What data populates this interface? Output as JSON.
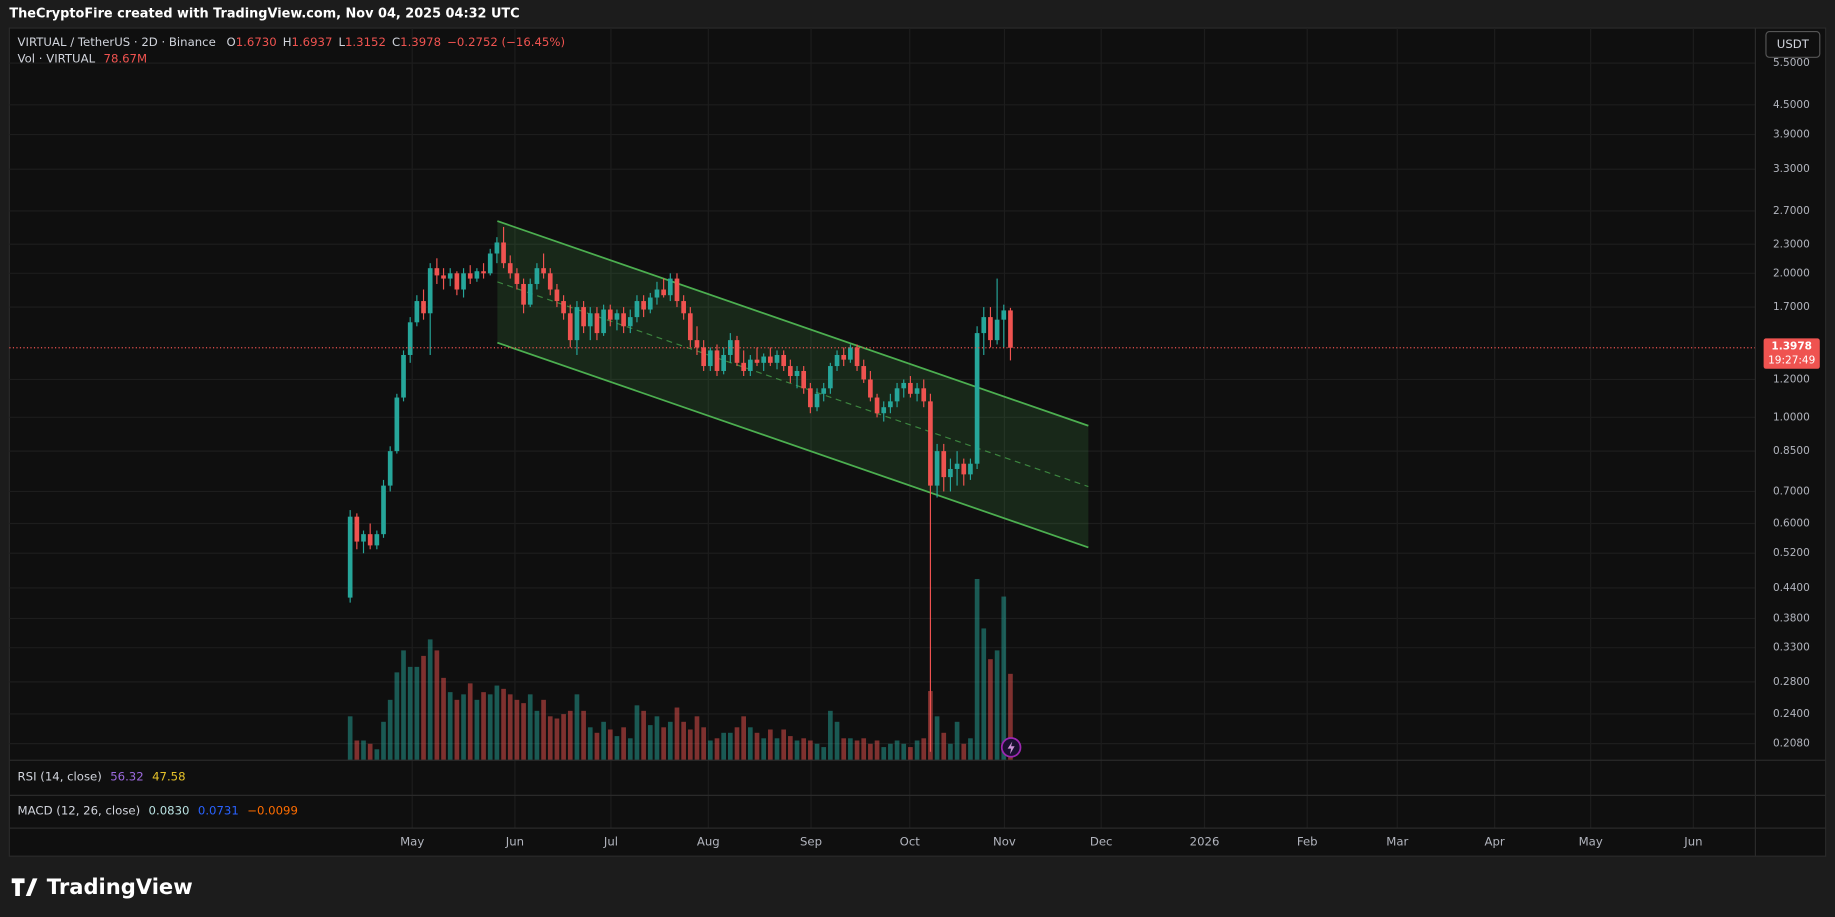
{
  "header": {
    "title": "TheCryptoFire created with TradingView.com, Nov 04, 2025 04:32 UTC"
  },
  "footer": {
    "brand": "TradingView"
  },
  "chart_data": {
    "type": "candlestick",
    "symbol": "VIRTUAL / TetherUS · 2D · Binance",
    "legend": {
      "o_label": "O",
      "o": "1.6730",
      "h_label": "H",
      "h": "1.6937",
      "l_label": "L",
      "l": "1.3152",
      "c_label": "C",
      "c": "1.3978",
      "change": "−0.2752 (−16.45%)"
    },
    "volume_legend": {
      "name": "Vol · VIRTUAL",
      "value": "78.67M"
    },
    "rsi": {
      "name": "RSI (14, close)",
      "values": [
        "56.32",
        "47.58"
      ],
      "colors": [
        "#9c6ade",
        "#e6c229"
      ]
    },
    "macd": {
      "name": "MACD (12, 26, close)",
      "values": [
        "0.0830",
        "0.0731",
        "−0.0099"
      ],
      "colors": [
        "#b8e0e0",
        "#2962ff",
        "#ff6d00"
      ]
    },
    "currency": "USDT",
    "countdown": "19:27:49",
    "up_color": "#26a69a",
    "down_color": "#ef5350",
    "log_scale": true,
    "grid": true,
    "ylim": [
      0.192,
      6.51
    ],
    "yticks": [
      {
        "value": 5.5,
        "label": "5.5000"
      },
      {
        "value": 4.5,
        "label": "4.5000"
      },
      {
        "value": 3.9,
        "label": "3.9000"
      },
      {
        "value": 3.3,
        "label": "3.3000"
      },
      {
        "value": 2.7,
        "label": "2.7000"
      },
      {
        "value": 2.3,
        "label": "2.3000"
      },
      {
        "value": 2.0,
        "label": "2.0000"
      },
      {
        "value": 1.7,
        "label": "1.7000"
      },
      {
        "value": 1.2,
        "label": "1.2000"
      },
      {
        "value": 1.0,
        "label": "1.0000"
      },
      {
        "value": 0.85,
        "label": "0.8500"
      },
      {
        "value": 0.7,
        "label": "0.7000"
      },
      {
        "value": 0.6,
        "label": "0.6000"
      },
      {
        "value": 0.52,
        "label": "0.5200"
      },
      {
        "value": 0.44,
        "label": "0.4400"
      },
      {
        "value": 0.38,
        "label": "0.3800"
      },
      {
        "value": 0.33,
        "label": "0.3300"
      },
      {
        "value": 0.28,
        "label": "0.2800"
      },
      {
        "value": 0.24,
        "label": "0.2400"
      },
      {
        "value": 0.208,
        "label": "0.2080"
      }
    ],
    "xlim": [
      -51.1,
      210.7
    ],
    "xticks": [
      {
        "value": 9.3,
        "label": "May"
      },
      {
        "value": 24.7,
        "label": "Jun"
      },
      {
        "value": 39.1,
        "label": "Jul"
      },
      {
        "value": 53.7,
        "label": "Aug"
      },
      {
        "value": 69.1,
        "label": "Sep"
      },
      {
        "value": 83.9,
        "label": "Oct"
      },
      {
        "value": 98.1,
        "label": "Nov"
      },
      {
        "value": 112.6,
        "label": "Dec"
      },
      {
        "value": 128.1,
        "label": "2026"
      },
      {
        "value": 143.5,
        "label": "Feb"
      },
      {
        "value": 157.0,
        "label": "Mar"
      },
      {
        "value": 171.6,
        "label": "Apr"
      },
      {
        "value": 186.0,
        "label": "May"
      },
      {
        "value": 201.4,
        "label": "Jun"
      }
    ],
    "open": [
      0.42,
      0.62,
      0.55,
      0.57,
      0.54,
      0.57,
      0.72,
      0.85,
      1.1,
      1.35,
      1.58,
      1.75,
      1.65,
      2.05,
      1.98,
      1.95,
      2.0,
      1.85,
      2.0,
      1.95,
      2.02,
      2.0,
      2.2,
      2.32,
      2.1,
      2.0,
      1.9,
      1.72,
      1.9,
      2.05,
      2.0,
      1.85,
      1.75,
      1.65,
      1.45,
      1.7,
      1.55,
      1.65,
      1.5,
      1.68,
      1.6,
      1.65,
      1.55,
      1.62,
      1.75,
      1.68,
      1.78,
      1.85,
      1.8,
      1.95,
      1.75,
      1.65,
      1.45,
      1.4,
      1.28,
      1.38,
      1.25,
      1.35,
      1.45,
      1.3,
      1.25,
      1.32,
      1.3,
      1.34,
      1.3,
      1.35,
      1.28,
      1.22,
      1.25,
      1.15,
      1.05,
      1.12,
      1.15,
      1.28,
      1.35,
      1.32,
      1.4,
      1.28,
      1.2,
      1.1,
      1.02,
      1.05,
      1.08,
      1.15,
      1.18,
      1.12,
      1.15,
      1.08,
      0.72,
      0.85,
      0.75,
      0.78,
      0.8,
      0.76,
      0.8,
      1.5,
      1.62,
      1.45,
      1.6,
      1.673
    ],
    "high": [
      0.64,
      0.63,
      0.58,
      0.6,
      0.58,
      0.74,
      0.87,
      1.12,
      1.38,
      1.62,
      1.8,
      1.85,
      2.1,
      2.15,
      2.05,
      2.05,
      2.02,
      2.05,
      2.08,
      2.05,
      2.1,
      2.25,
      2.38,
      2.5,
      2.18,
      2.05,
      1.95,
      1.95,
      2.1,
      2.2,
      2.05,
      1.9,
      1.8,
      1.72,
      1.75,
      1.75,
      1.7,
      1.7,
      1.72,
      1.72,
      1.68,
      1.7,
      1.68,
      1.8,
      1.8,
      1.82,
      1.92,
      1.95,
      2.0,
      2.0,
      1.8,
      1.7,
      1.55,
      1.45,
      1.4,
      1.42,
      1.4,
      1.5,
      1.48,
      1.38,
      1.35,
      1.4,
      1.36,
      1.4,
      1.38,
      1.38,
      1.32,
      1.28,
      1.28,
      1.18,
      1.15,
      1.18,
      1.3,
      1.38,
      1.4,
      1.42,
      1.42,
      1.32,
      1.25,
      1.12,
      1.08,
      1.12,
      1.18,
      1.2,
      1.22,
      1.18,
      1.2,
      1.12,
      0.88,
      0.88,
      0.82,
      0.85,
      0.82,
      0.82,
      1.55,
      1.7,
      1.7,
      1.95,
      1.72,
      1.6937
    ],
    "low": [
      0.41,
      0.53,
      0.52,
      0.53,
      0.53,
      0.56,
      0.7,
      0.84,
      1.08,
      1.3,
      1.55,
      1.6,
      1.35,
      1.9,
      1.85,
      1.88,
      1.8,
      1.78,
      1.9,
      1.92,
      1.95,
      1.98,
      2.1,
      2.05,
      1.95,
      1.85,
      1.65,
      1.7,
      1.85,
      1.95,
      1.8,
      1.7,
      1.6,
      1.4,
      1.35,
      1.5,
      1.45,
      1.45,
      1.48,
      1.55,
      1.52,
      1.5,
      1.5,
      1.58,
      1.62,
      1.65,
      1.72,
      1.78,
      1.75,
      1.7,
      1.6,
      1.4,
      1.35,
      1.25,
      1.25,
      1.22,
      1.23,
      1.3,
      1.28,
      1.22,
      1.22,
      1.28,
      1.25,
      1.28,
      1.26,
      1.25,
      1.18,
      1.15,
      1.12,
      1.02,
      1.03,
      1.08,
      1.12,
      1.25,
      1.28,
      1.3,
      1.25,
      1.18,
      1.08,
      1.0,
      0.98,
      1.02,
      1.05,
      1.1,
      1.1,
      1.08,
      1.05,
      0.2,
      0.68,
      0.7,
      0.7,
      0.72,
      0.72,
      0.74,
      0.78,
      1.35,
      1.4,
      1.42,
      1.4,
      1.3152
    ],
    "close": [
      0.62,
      0.55,
      0.57,
      0.54,
      0.57,
      0.72,
      0.85,
      1.1,
      1.35,
      1.58,
      1.75,
      1.65,
      2.05,
      1.98,
      1.95,
      2.0,
      1.85,
      2.0,
      1.95,
      2.02,
      2.0,
      2.2,
      2.32,
      2.1,
      2.0,
      1.9,
      1.72,
      1.9,
      2.05,
      2.0,
      1.85,
      1.75,
      1.65,
      1.45,
      1.7,
      1.55,
      1.65,
      1.5,
      1.68,
      1.6,
      1.65,
      1.55,
      1.62,
      1.75,
      1.68,
      1.78,
      1.85,
      1.8,
      1.95,
      1.75,
      1.65,
      1.45,
      1.4,
      1.28,
      1.38,
      1.25,
      1.35,
      1.45,
      1.3,
      1.25,
      1.32,
      1.3,
      1.34,
      1.3,
      1.35,
      1.28,
      1.22,
      1.25,
      1.15,
      1.05,
      1.12,
      1.15,
      1.28,
      1.35,
      1.32,
      1.4,
      1.28,
      1.2,
      1.1,
      1.02,
      1.05,
      1.08,
      1.15,
      1.18,
      1.12,
      1.15,
      1.08,
      0.72,
      0.85,
      0.75,
      0.78,
      0.8,
      0.76,
      0.8,
      1.5,
      1.62,
      1.45,
      1.6,
      1.673,
      1.3978
    ],
    "volume": [
      40,
      18,
      18,
      15,
      10,
      35,
      55,
      80,
      100,
      85,
      85,
      95,
      110,
      100,
      75,
      62,
      55,
      60,
      70,
      55,
      62,
      60,
      68,
      65,
      60,
      55,
      52,
      60,
      45,
      55,
      40,
      38,
      42,
      45,
      60,
      45,
      30,
      25,
      35,
      28,
      22,
      30,
      20,
      50,
      45,
      32,
      40,
      30,
      35,
      48,
      35,
      28,
      40,
      30,
      18,
      20,
      25,
      25,
      30,
      40,
      30,
      25,
      20,
      28,
      20,
      28,
      22,
      18,
      20,
      18,
      15,
      12,
      45,
      35,
      20,
      20,
      18,
      20,
      15,
      18,
      12,
      15,
      18,
      15,
      12,
      18,
      20,
      63,
      40,
      25,
      15,
      35,
      15,
      20,
      165,
      120,
      92,
      100,
      149,
      78.67
    ]
  }
}
